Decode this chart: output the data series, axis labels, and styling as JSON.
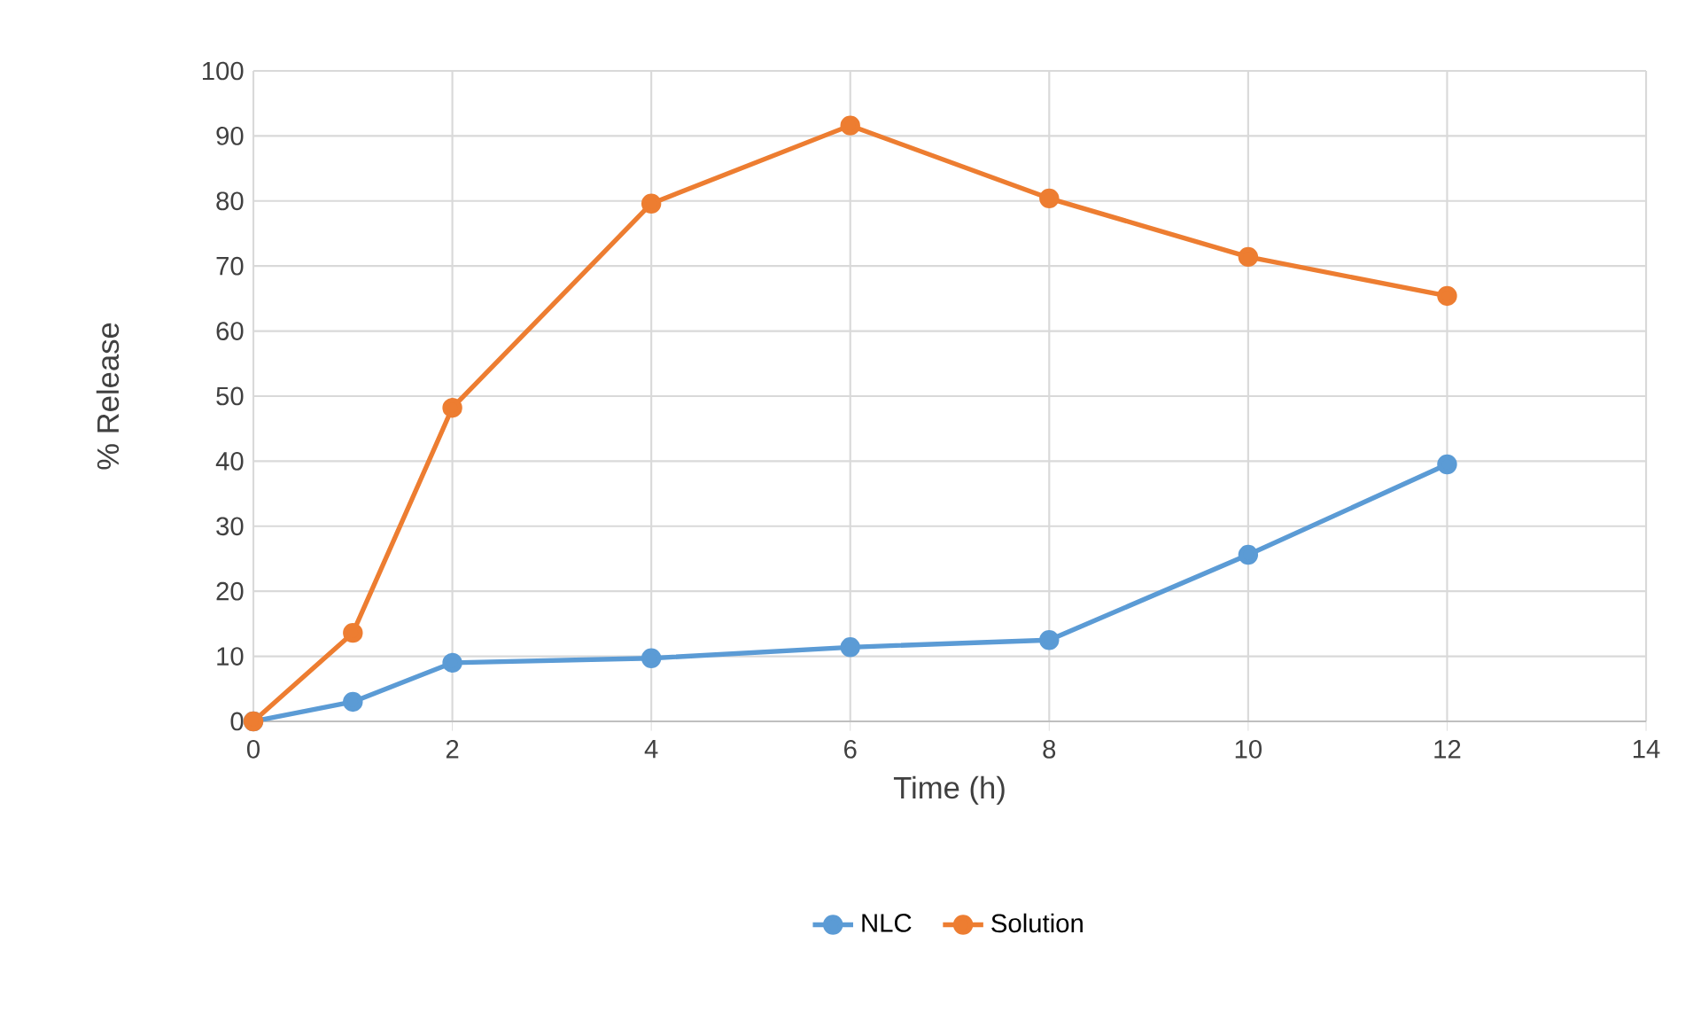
{
  "chart_data": {
    "type": "line",
    "xlabel": "Time (h)",
    "ylabel": "% Release",
    "x": [
      0,
      1,
      2,
      4,
      6,
      8,
      10,
      12
    ],
    "series": [
      {
        "name": "NLC",
        "color": "#5b9bd5",
        "values": [
          0,
          3.0,
          9.0,
          9.7,
          11.4,
          12.5,
          25.6,
          39.5
        ]
      },
      {
        "name": "Solution",
        "color": "#ed7d31",
        "values": [
          0,
          13.6,
          48.2,
          79.6,
          91.6,
          80.4,
          71.4,
          65.4
        ]
      }
    ],
    "xlim": [
      0,
      14
    ],
    "xticks": [
      0,
      2,
      4,
      6,
      8,
      10,
      12,
      14
    ],
    "ylim": [
      0,
      100
    ],
    "yticks": [
      0,
      10,
      20,
      30,
      40,
      50,
      60,
      70,
      80,
      90,
      100
    ],
    "grid": true,
    "legend": "bottom",
    "marker": "circle",
    "line_style": "solid"
  }
}
